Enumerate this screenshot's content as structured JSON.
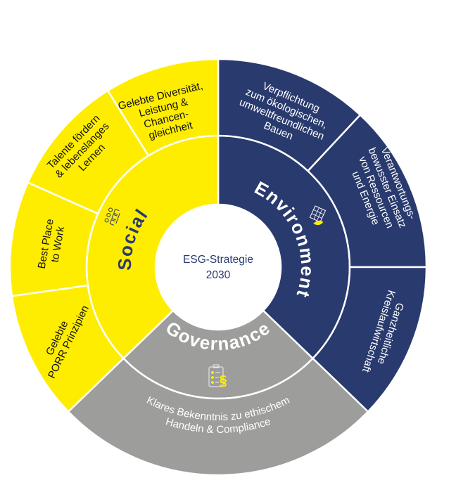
{
  "center": {
    "line1": "ESG-Strategie",
    "line2": "2030"
  },
  "colors": {
    "social": "#FFED00",
    "environment": "#293A6E",
    "governance": "#9D9D9C",
    "divider": "#FFFFFF",
    "center_text": "#293A6E"
  },
  "pillars": {
    "social": {
      "label": "Social",
      "icon": "people-network-icon"
    },
    "environment": {
      "label": "Environment",
      "icon": "building-leaf-icon"
    },
    "governance": {
      "label": "Governance",
      "icon": "clipboard-paragraph-icon"
    }
  },
  "outer": {
    "social": [
      {
        "lines": [
          "Gelebte",
          "PORR Prinzipien"
        ]
      },
      {
        "lines": [
          "Best Place",
          "to Work"
        ]
      },
      {
        "lines": [
          "Talente fördern",
          "& lebenslanges",
          "Lernen"
        ]
      },
      {
        "lines": [
          "Gelebte Diversität,",
          "Leistung &",
          "Chancen-",
          "gleichheit"
        ]
      }
    ],
    "environment": [
      {
        "lines": [
          "Verpflichtung",
          "zum ökologischen,",
          "umweltfreundlichen",
          "Bauen"
        ]
      },
      {
        "lines": [
          "Verantwortungs-",
          "bewusster Einsatz",
          "von Ressourcen",
          "und Energie"
        ]
      },
      {
        "lines": [
          "Ganzheitliche",
          "Kreislaufwirtschaft"
        ]
      }
    ],
    "governance": [
      {
        "lines": [
          "Klares Bekenntnis zu ethischem",
          "Handeln & Compliance"
        ]
      }
    ]
  }
}
